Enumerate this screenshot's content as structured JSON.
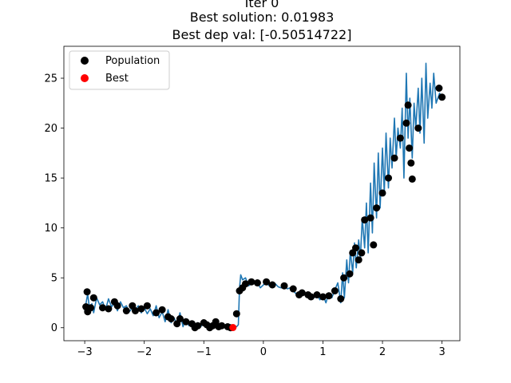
{
  "chart_data": {
    "type": "scatter",
    "title_lines": [
      "Iter 0",
      "Best solution: 0.01983",
      "Best dep val: [-0.50514722]"
    ],
    "xlabel": "",
    "ylabel": "",
    "xlim": [
      -3.35,
      3.3
    ],
    "ylim": [
      -1.3,
      28.2
    ],
    "xticks": [
      -3,
      -2,
      -1,
      0,
      1,
      2,
      3
    ],
    "yticks": [
      0,
      5,
      10,
      15,
      20,
      25
    ],
    "xtick_labels": [
      "−3",
      "−2",
      "−1",
      "0",
      "1",
      "2",
      "3"
    ],
    "ytick_labels": [
      "0",
      "5",
      "10",
      "15",
      "20",
      "25"
    ],
    "grid": false,
    "legend_position": "upper-left",
    "legend": [
      {
        "label": "Population",
        "color": "#000000"
      },
      {
        "label": "Best",
        "color": "#ff0000"
      }
    ],
    "colors": {
      "line": "#1f77b4",
      "population": "#000000",
      "best": "#ff0000"
    },
    "series": [
      {
        "name": "Population",
        "x": [
          -2.98,
          -2.96,
          -2.95,
          -2.9,
          -2.85,
          -2.7,
          -2.6,
          -2.5,
          -2.45,
          -2.3,
          -2.2,
          -2.15,
          -2.05,
          -1.95,
          -1.8,
          -1.7,
          -1.6,
          -1.55,
          -1.45,
          -1.4,
          -1.3,
          -1.2,
          -1.15,
          -1.1,
          -1.0,
          -0.95,
          -0.9,
          -0.85,
          -0.8,
          -0.75,
          -0.7,
          -0.6,
          -0.55,
          -0.45,
          -0.4,
          -0.35,
          -0.3,
          -0.2,
          -0.1,
          0.05,
          0.15,
          0.35,
          0.5,
          0.6,
          0.65,
          0.75,
          0.8,
          0.9,
          1.0,
          1.1,
          1.2,
          1.3,
          1.35,
          1.45,
          1.5,
          1.55,
          1.6,
          1.65,
          1.7,
          1.8,
          1.85,
          1.9,
          2.0,
          2.1,
          2.2,
          2.3,
          2.4,
          2.43,
          2.45,
          2.48,
          2.5,
          2.6,
          2.95,
          3.0
        ],
        "y": [
          2.1,
          3.6,
          1.6,
          2.0,
          3.0,
          2.0,
          1.9,
          2.6,
          2.2,
          1.7,
          2.2,
          1.7,
          1.9,
          2.2,
          1.5,
          1.8,
          1.1,
          0.9,
          0.4,
          0.9,
          0.6,
          0.4,
          0.0,
          0.2,
          0.5,
          0.3,
          0.0,
          0.2,
          0.6,
          0.1,
          0.2,
          0.1,
          0.0,
          1.4,
          3.7,
          4.0,
          4.4,
          4.6,
          4.5,
          4.6,
          4.3,
          4.2,
          3.9,
          3.3,
          3.5,
          3.3,
          3.1,
          3.3,
          3.1,
          3.2,
          3.7,
          2.9,
          5.0,
          5.4,
          7.5,
          8.0,
          6.8,
          7.5,
          10.8,
          11.0,
          8.3,
          12.0,
          13.5,
          15.0,
          17.0,
          19.0,
          20.5,
          22.3,
          18.0,
          16.5,
          14.9,
          20.0,
          24.0,
          23.1
        ]
      },
      {
        "name": "Best",
        "x": [
          -0.51
        ],
        "y": [
          0.02
        ]
      }
    ],
    "curve": {
      "x": [
        -3.0,
        -2.95,
        -2.92,
        -2.88,
        -2.85,
        -2.8,
        -2.75,
        -2.7,
        -2.65,
        -2.6,
        -2.55,
        -2.5,
        -2.45,
        -2.4,
        -2.35,
        -2.3,
        -2.25,
        -2.2,
        -2.15,
        -2.1,
        -2.05,
        -2.0,
        -1.95,
        -1.9,
        -1.85,
        -1.8,
        -1.75,
        -1.7,
        -1.65,
        -1.6,
        -1.55,
        -1.5,
        -1.45,
        -1.4,
        -1.35,
        -1.3,
        -1.25,
        -1.2,
        -1.15,
        -1.1,
        -1.05,
        -1.0,
        -0.95,
        -0.9,
        -0.85,
        -0.8,
        -0.75,
        -0.7,
        -0.65,
        -0.6,
        -0.55,
        -0.5,
        -0.45,
        -0.42,
        -0.4,
        -0.38,
        -0.35,
        -0.3,
        -0.25,
        -0.2,
        -0.15,
        -0.1,
        -0.05,
        0.0,
        0.05,
        0.1,
        0.15,
        0.2,
        0.25,
        0.3,
        0.35,
        0.4,
        0.45,
        0.5,
        0.55,
        0.6,
        0.65,
        0.7,
        0.75,
        0.8,
        0.85,
        0.9,
        0.95,
        1.0,
        1.05,
        1.1,
        1.15,
        1.2,
        1.25,
        1.3,
        1.33,
        1.36,
        1.4,
        1.43,
        1.46,
        1.5,
        1.53,
        1.56,
        1.6,
        1.63,
        1.66,
        1.7,
        1.73,
        1.76,
        1.8,
        1.83,
        1.86,
        1.9,
        1.93,
        1.96,
        2.0,
        2.03,
        2.06,
        2.1,
        2.13,
        2.16,
        2.2,
        2.23,
        2.26,
        2.3,
        2.33,
        2.36,
        2.4,
        2.43,
        2.46,
        2.5,
        2.53,
        2.56,
        2.6,
        2.63,
        2.66,
        2.7,
        2.73,
        2.76,
        2.8,
        2.83,
        2.86,
        2.9,
        2.93,
        2.96,
        3.0
      ],
      "y": [
        1.7,
        3.4,
        1.9,
        2.4,
        1.5,
        3.0,
        2.3,
        2.6,
        1.8,
        2.9,
        2.1,
        2.5,
        1.7,
        2.6,
        2.0,
        2.2,
        1.6,
        2.0,
        1.8,
        2.2,
        1.5,
        2.0,
        1.4,
        1.9,
        1.2,
        2.2,
        1.0,
        1.6,
        0.6,
        1.8,
        0.5,
        1.0,
        0.3,
        1.5,
        0.1,
        0.9,
        0.2,
        0.6,
        0.0,
        0.5,
        0.1,
        0.6,
        0.0,
        0.4,
        0.1,
        0.3,
        0.0,
        0.3,
        0.1,
        0.2,
        0.0,
        0.1,
        0.1,
        0.3,
        4.0,
        5.3,
        4.8,
        5.0,
        4.2,
        4.4,
        4.6,
        4.5,
        4.0,
        4.3,
        4.5,
        4.2,
        4.0,
        4.4,
        4.1,
        4.0,
        4.2,
        3.9,
        4.0,
        3.7,
        3.4,
        3.6,
        3.2,
        3.5,
        3.0,
        3.3,
        3.0,
        3.3,
        2.8,
        3.3,
        2.5,
        3.5,
        3.0,
        3.8,
        4.5,
        2.5,
        5.5,
        3.0,
        6.8,
        4.5,
        7.7,
        5.5,
        8.5,
        6.0,
        8.8,
        7.0,
        11.0,
        8.0,
        12.5,
        7.5,
        14.5,
        9.5,
        16.5,
        11.0,
        17.5,
        12.0,
        18.0,
        13.5,
        19.5,
        14.0,
        19.0,
        16.0,
        21.0,
        17.0,
        20.0,
        18.0,
        22.0,
        15.0,
        25.5,
        19.0,
        23.0,
        17.0,
        22.5,
        20.0,
        24.0,
        19.5,
        25.0,
        18.5,
        26.5,
        21.0,
        24.5,
        22.0,
        25.5,
        22.5,
        23.0,
        23.5,
        22.8
      ]
    }
  }
}
